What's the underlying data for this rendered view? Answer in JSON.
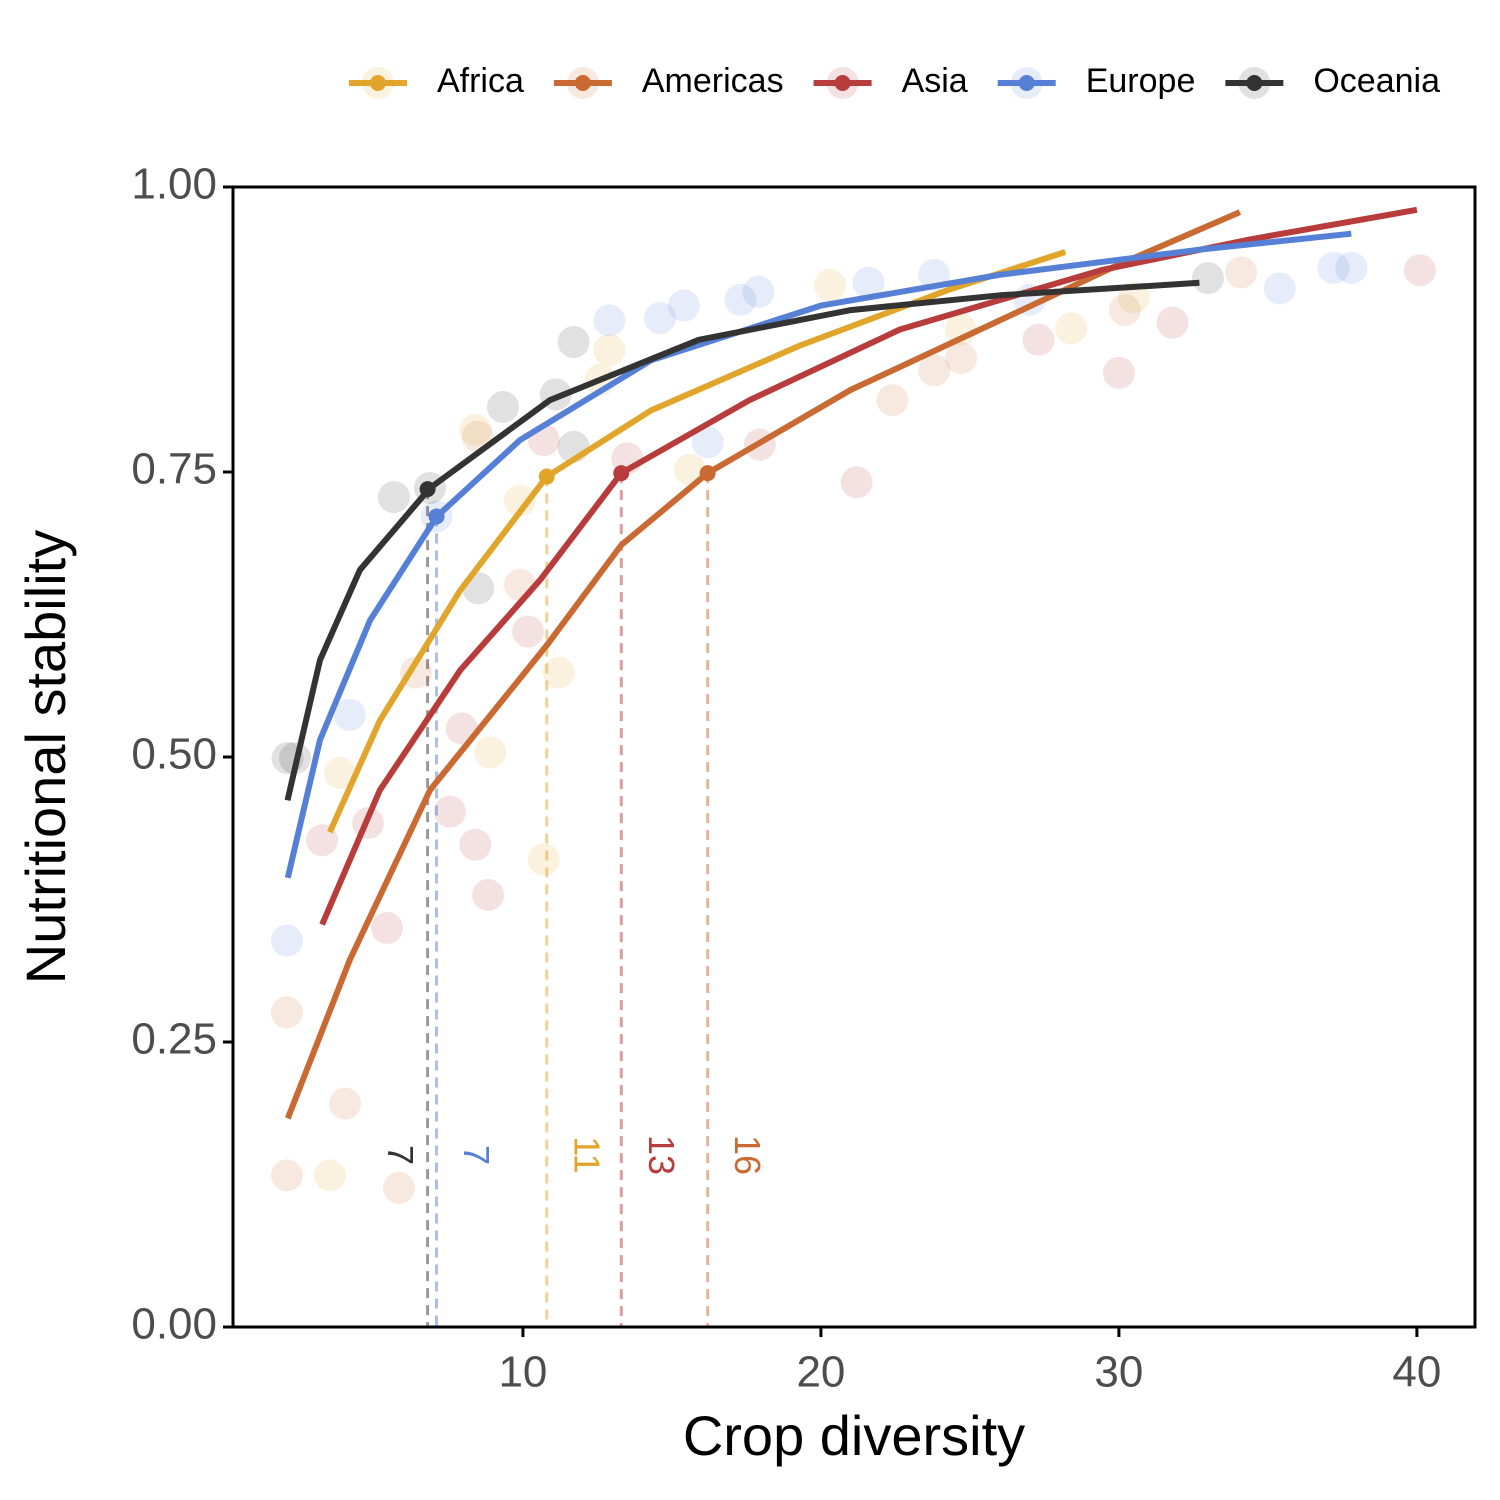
{
  "chart_data": {
    "type": "scatter-fit",
    "x_label": "Crop diversity",
    "y_label": "Nutritional stability",
    "xlim": [
      0.27,
      41.95
    ],
    "ylim": [
      0,
      1
    ],
    "xticks": [
      10,
      20,
      30,
      40
    ],
    "yticks": [
      {
        "value": 0,
        "label": "0.00"
      },
      {
        "value": 0.25,
        "label": "0.25"
      },
      {
        "value": 0.5,
        "label": "0.50"
      },
      {
        "value": 0.75,
        "label": "0.75"
      },
      {
        "value": 1,
        "label": "1.00"
      }
    ],
    "legend": "top",
    "series": [
      {
        "name": "Africa",
        "color": "#e0a52a",
        "points": {
          "x": [
            3.86,
            3.52,
            8.9,
            10.7,
            11.2,
            8.4,
            9.9,
            12.6,
            12.9,
            15.6,
            20.3,
            24.7,
            28.4,
            30.5
          ],
          "y": [
            0.486,
            0.133,
            0.504,
            0.41,
            0.574,
            0.787,
            0.725,
            0.831,
            0.857,
            0.752,
            0.914,
            0.875,
            0.876,
            0.903
          ]
        },
        "fit": {
          "x": [
            3.52,
            5.2,
            7.89,
            10.8,
            14.3,
            19.3,
            24.3,
            28.2
          ],
          "y": [
            0.434,
            0.532,
            0.646,
            0.746,
            0.804,
            0.861,
            0.91,
            0.943
          ]
        },
        "threshold": {
          "x": 10.8,
          "y": 0.746,
          "label": "11"
        }
      },
      {
        "name": "Americas",
        "color": "#c96a32",
        "points": {
          "x": [
            2.08,
            2.08,
            4.03,
            5.84,
            6.41,
            9.9,
            8.49,
            22.4,
            23.8,
            34.1,
            30.2,
            24.7
          ],
          "y": [
            0.276,
            0.133,
            0.196,
            0.122,
            0.574,
            0.651,
            0.781,
            0.813,
            0.839,
            0.925,
            0.892,
            0.85
          ]
        },
        "fit": {
          "x": [
            2.11,
            4.19,
            6.88,
            10.8,
            13.3,
            16.2,
            21,
            26,
            30,
            34.06
          ],
          "y": [
            0.183,
            0.322,
            0.471,
            0.598,
            0.686,
            0.749,
            0.822,
            0.883,
            0.932,
            0.978
          ]
        },
        "threshold": {
          "x": 16.2,
          "y": 0.749,
          "label": "16"
        }
      },
      {
        "name": "Asia",
        "color": "#b83c3c",
        "points": {
          "x": [
            3.26,
            4.8,
            5.44,
            7.55,
            7.95,
            8.4,
            8.83,
            10.17,
            10.7,
            13.5,
            17.95,
            21.2,
            30,
            31.8,
            40.1,
            27.3
          ],
          "y": [
            0.427,
            0.442,
            0.35,
            0.452,
            0.525,
            0.423,
            0.379,
            0.61,
            0.778,
            0.762,
            0.774,
            0.741,
            0.837,
            0.881,
            0.927,
            0.866
          ]
        },
        "fit": {
          "x": [
            3.26,
            5.2,
            7.89,
            10.57,
            13.3,
            17.6,
            22.65,
            29.4,
            34.4,
            40
          ],
          "y": [
            0.353,
            0.471,
            0.576,
            0.655,
            0.749,
            0.813,
            0.875,
            0.927,
            0.954,
            0.98
          ]
        },
        "threshold": {
          "x": 13.3,
          "y": 0.749,
          "label": "13"
        }
      },
      {
        "name": "Europe",
        "color": "#5580d6",
        "points": {
          "x": [
            2.08,
            4.19,
            7.1,
            12.9,
            14.6,
            15.4,
            16.2,
            17.3,
            17.9,
            21.6,
            23.8,
            35.4,
            37.2,
            37.8,
            27
          ],
          "y": [
            0.339,
            0.537,
            0.711,
            0.883,
            0.885,
            0.896,
            0.776,
            0.901,
            0.908,
            0.916,
            0.923,
            0.911,
            0.929,
            0.929,
            0.901
          ]
        },
        "fit": {
          "x": [
            2.11,
            3.19,
            4.87,
            7.11,
            9.9,
            14.3,
            20,
            26,
            32.7,
            37.8
          ],
          "y": [
            0.394,
            0.515,
            0.62,
            0.711,
            0.778,
            0.848,
            0.896,
            0.923,
            0.945,
            0.959
          ]
        },
        "threshold": {
          "x": 7.1,
          "y": 0.711,
          "label": "7"
        }
      },
      {
        "name": "Oceania",
        "color": "#333333",
        "points": {
          "x": [
            2.1,
            2.35,
            5.67,
            6.88,
            8.5,
            9.33,
            11.7,
            11.1,
            11.7,
            32.99
          ],
          "y": [
            0.499,
            0.499,
            0.728,
            0.736,
            0.648,
            0.807,
            0.864,
            0.818,
            0.772,
            0.92
          ]
        },
        "fit": {
          "x": [
            2.1,
            3.19,
            4.53,
            6.88,
            10.9,
            15.9,
            21,
            26,
            32.7
          ],
          "y": [
            0.462,
            0.585,
            0.664,
            0.736,
            0.813,
            0.866,
            0.892,
            0.905,
            0.916
          ]
        },
        "threshold": {
          "x": 6.8,
          "y": 0.735,
          "label": "7"
        }
      }
    ]
  }
}
